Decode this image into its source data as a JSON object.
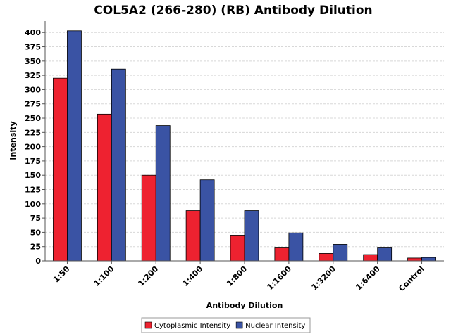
{
  "chart_data": {
    "type": "bar",
    "title": "COL5A2 (266-280) (RB) Antibody Dilution",
    "xlabel": "Antibody Dilution",
    "ylabel": "Intensity",
    "categories": [
      "1:50",
      "1:100",
      "1:200",
      "1:400",
      "1:800",
      "1:1600",
      "1:3200",
      "1:6400",
      "Control"
    ],
    "series": [
      {
        "name": "Cytoplasmic Intensity",
        "color": "#ee2230",
        "values": [
          320,
          257,
          150,
          88,
          45,
          24,
          13,
          11,
          5
        ]
      },
      {
        "name": "Nuclear Intensity",
        "color": "#3a53a4",
        "values": [
          403,
          336,
          237,
          142,
          88,
          49,
          29,
          24,
          6
        ]
      }
    ],
    "ylim": [
      0,
      420
    ],
    "yticks": [
      0,
      25,
      50,
      75,
      100,
      125,
      150,
      175,
      200,
      225,
      250,
      275,
      300,
      325,
      350,
      375,
      400
    ],
    "grid": true,
    "legend_position": "bottom"
  }
}
